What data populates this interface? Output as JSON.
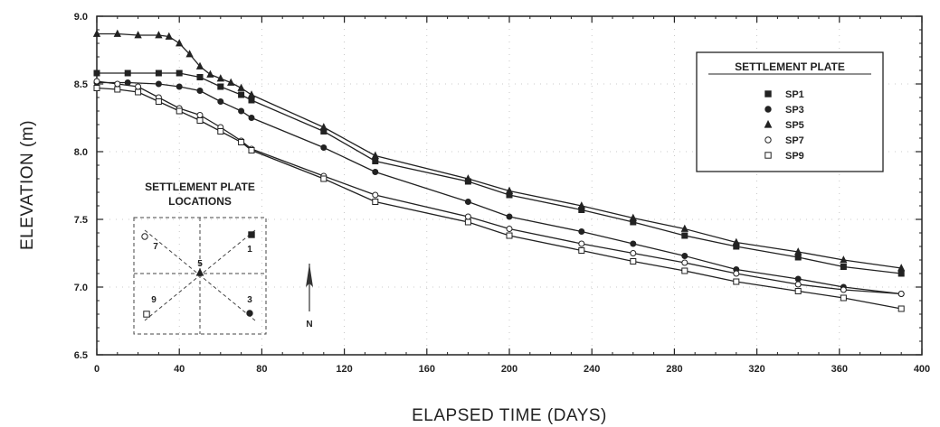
{
  "chart_data": {
    "type": "line",
    "xlabel": "ELAPSED TIME (DAYS)",
    "ylabel": "ELEVATION (m)",
    "xlim": [
      0,
      400
    ],
    "ylim": [
      6.5,
      9.0
    ],
    "xticks": [
      "0",
      "40",
      "80",
      "120",
      "160",
      "200",
      "240",
      "280",
      "320",
      "360",
      "400"
    ],
    "yticks": [
      "6.5",
      "7.0",
      "7.5",
      "8.0",
      "8.5",
      "9.0"
    ],
    "legend": {
      "title": "SETTLEMENT PLATE",
      "position": "top-right"
    },
    "series": [
      {
        "name": "SP1",
        "marker": "filled-square",
        "x": [
          0,
          15,
          30,
          40,
          50,
          60,
          70,
          75,
          110,
          135,
          180,
          200,
          235,
          260,
          285,
          310,
          340,
          362,
          390
        ],
        "y": [
          8.58,
          8.58,
          8.58,
          8.58,
          8.55,
          8.48,
          8.42,
          8.38,
          8.15,
          7.93,
          7.78,
          7.68,
          7.57,
          7.48,
          7.38,
          7.3,
          7.22,
          7.15,
          7.1
        ]
      },
      {
        "name": "SP3",
        "marker": "filled-circle",
        "x": [
          0,
          15,
          30,
          40,
          50,
          60,
          70,
          75,
          110,
          135,
          180,
          200,
          235,
          260,
          285,
          310,
          340,
          362,
          390
        ],
        "y": [
          8.51,
          8.51,
          8.5,
          8.48,
          8.45,
          8.37,
          8.3,
          8.25,
          8.03,
          7.85,
          7.63,
          7.52,
          7.41,
          7.32,
          7.23,
          7.13,
          7.06,
          7.0,
          6.95
        ]
      },
      {
        "name": "SP5",
        "marker": "filled-triangle",
        "x": [
          0,
          10,
          20,
          30,
          35,
          40,
          45,
          50,
          55,
          60,
          65,
          70,
          75,
          110,
          135,
          180,
          200,
          235,
          260,
          285,
          310,
          340,
          362,
          390
        ],
        "y": [
          8.87,
          8.87,
          8.86,
          8.86,
          8.85,
          8.8,
          8.72,
          8.63,
          8.57,
          8.54,
          8.51,
          8.47,
          8.42,
          8.18,
          7.97,
          7.8,
          7.71,
          7.6,
          7.51,
          7.43,
          7.33,
          7.26,
          7.2,
          7.14
        ]
      },
      {
        "name": "SP7",
        "marker": "open-circle",
        "x": [
          0,
          10,
          20,
          30,
          40,
          50,
          60,
          70,
          75,
          110,
          135,
          180,
          200,
          235,
          260,
          285,
          310,
          340,
          362,
          390
        ],
        "y": [
          8.52,
          8.5,
          8.48,
          8.4,
          8.32,
          8.27,
          8.18,
          8.08,
          8.02,
          7.82,
          7.68,
          7.52,
          7.43,
          7.32,
          7.25,
          7.18,
          7.1,
          7.02,
          6.98,
          6.95
        ]
      },
      {
        "name": "SP9",
        "marker": "open-square",
        "x": [
          0,
          10,
          20,
          30,
          40,
          50,
          60,
          70,
          75,
          110,
          135,
          180,
          200,
          235,
          260,
          285,
          310,
          340,
          362,
          390
        ],
        "y": [
          8.47,
          8.46,
          8.44,
          8.37,
          8.3,
          8.23,
          8.15,
          8.07,
          8.01,
          7.8,
          7.63,
          7.48,
          7.38,
          7.27,
          7.19,
          7.12,
          7.04,
          6.97,
          6.92,
          6.84
        ]
      }
    ],
    "inset": {
      "title_lines": [
        "SETTLEMENT PLATE",
        "LOCATIONS"
      ],
      "markers": [
        {
          "label": "7",
          "marker": "open-circle",
          "pos": "top-left"
        },
        {
          "label": "1",
          "marker": "filled-square",
          "pos": "top-right"
        },
        {
          "label": "5",
          "marker": "filled-triangle",
          "pos": "center"
        },
        {
          "label": "9",
          "marker": "open-square",
          "pos": "bottom-left"
        },
        {
          "label": "3",
          "marker": "filled-circle",
          "pos": "bottom-right"
        }
      ],
      "north_label": "N"
    }
  }
}
